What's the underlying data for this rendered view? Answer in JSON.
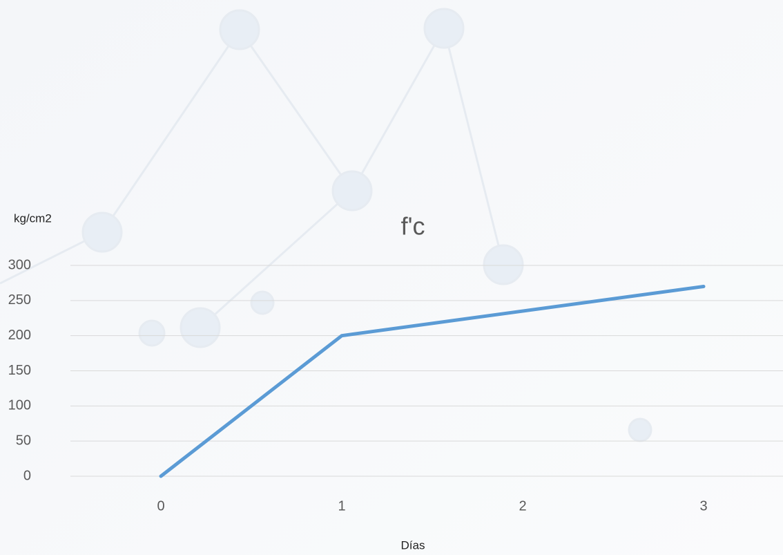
{
  "chart_data": {
    "type": "line",
    "title": "f'c",
    "y_label": "kg/cm2",
    "x_label": "Días",
    "categories": [
      "0",
      "1",
      "2",
      "3"
    ],
    "series": [
      {
        "name": "f'c",
        "color": "#5b9bd5",
        "values": [
          0,
          200,
          235,
          270
        ]
      }
    ],
    "ylim": [
      0,
      300
    ],
    "yticks": [
      0,
      50,
      100,
      150,
      200,
      250,
      300
    ],
    "grid": true
  }
}
